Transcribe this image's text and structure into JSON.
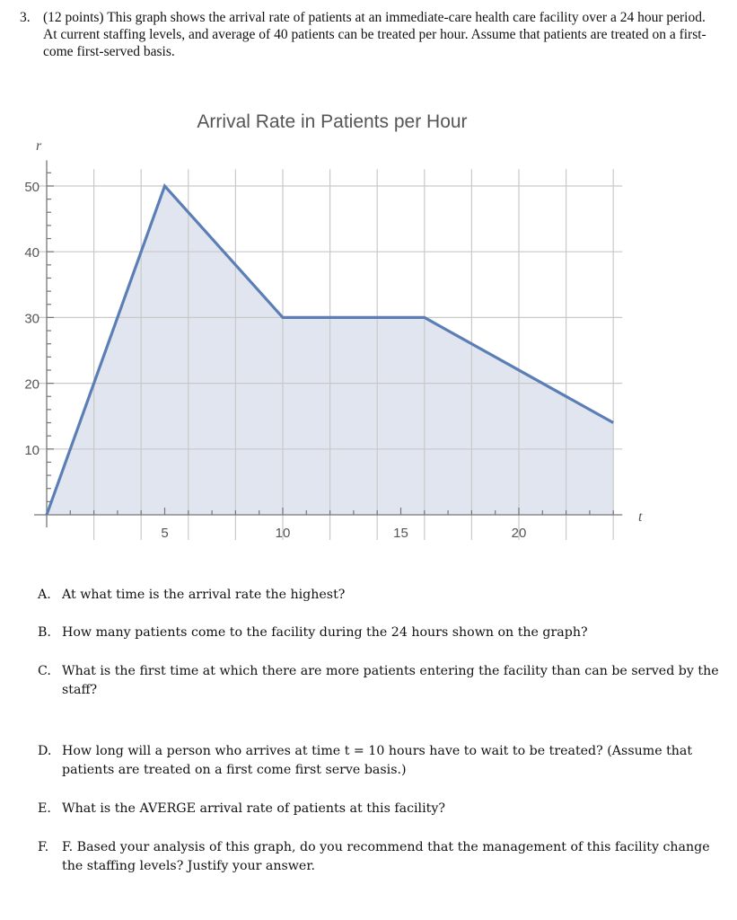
{
  "problem": {
    "number": "3.",
    "text": "(12 points)  This graph shows the arrival rate of patients at an immediate-care health care facility over a 24 hour period.    At current staffing levels, and average of  40 patients can be treated per hour.  Assume that patients are treated on a first-come first-served basis."
  },
  "chart_data": {
    "type": "area",
    "title": "Arrival Rate in Patients per Hour",
    "xlabel": "t",
    "ylabel": "r",
    "x": [
      0,
      5,
      10,
      16,
      24
    ],
    "series": [
      {
        "name": "Arrival rate",
        "values": [
          0,
          50,
          30,
          30,
          14
        ],
        "color": "#5b7fb5",
        "fill": "#e1e5f0"
      }
    ],
    "xlim": [
      0,
      24
    ],
    "ylim": [
      0,
      52
    ],
    "x_ticks": [
      5,
      10,
      15,
      20
    ],
    "y_ticks": [
      10,
      20,
      30,
      40,
      50
    ],
    "x_tick_labels": [
      "5",
      "10",
      "15",
      "20"
    ],
    "y_tick_labels": [
      "10",
      "20",
      "30",
      "40",
      "50"
    ],
    "grid": true,
    "x_gridlines_every": 2,
    "y_gridlines_every": 10,
    "legend": null
  },
  "questions": [
    {
      "label": "A.",
      "text": "At what time is the arrival rate the highest?"
    },
    {
      "label": "B.",
      "text": "How many patients come to the facility during the 24 hours shown on the graph?"
    },
    {
      "label": "C.",
      "text": "What is the first time at which there are more patients entering the facility than can be served by the staff?"
    },
    {
      "label": "D.",
      "text": "How long will a person who arrives at time t = 10 hours have to wait to be treated?  (Assume that patients are treated on a first come first serve basis.)"
    },
    {
      "label": "E.",
      "text": "What is the AVERGE arrival rate of patients at this facility?"
    },
    {
      "label": "F.",
      "text": "F.  Based your analysis of this graph, do you recommend that the management of this facility change the staffing levels?  Justify your answer."
    }
  ]
}
